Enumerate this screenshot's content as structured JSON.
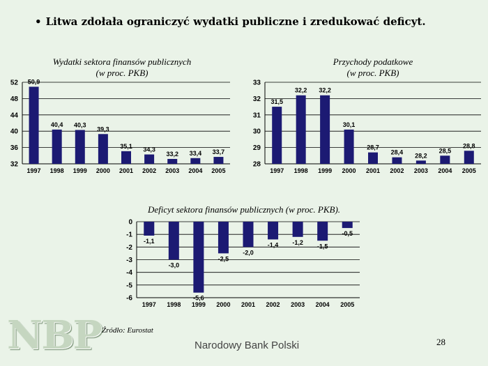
{
  "slide": {
    "bullet": "•",
    "headline": "Litwa zdołała ograniczyć wydatki publiczne i zredukować deficyt.",
    "source": "Źródło: Eurostat",
    "footer": "Narodowy Bank Polski",
    "page_number": "28",
    "logo_text": "NBP"
  },
  "colors": {
    "bar": "#1c1a73",
    "background": "#eaf3e8",
    "grid": "#000000"
  },
  "chart_data": [
    {
      "type": "bar",
      "title": "Wydatki sektora finansów publicznych",
      "subtitle": "(w proc. PKB)",
      "categories": [
        "1997",
        "1998",
        "1999",
        "2000",
        "2001",
        "2002",
        "2003",
        "2004",
        "2005"
      ],
      "values": [
        50.9,
        40.4,
        40.3,
        39.3,
        35.1,
        34.3,
        33.2,
        33.4,
        33.7
      ],
      "value_labels": [
        "50,9",
        "40,4",
        "40,3",
        "39,3",
        "35,1",
        "34,3",
        "33,2",
        "33,4",
        "33,7"
      ],
      "ylim": [
        32,
        52
      ],
      "yticks": [
        32,
        36,
        40,
        44,
        48,
        52
      ],
      "grid": true,
      "legend": "none"
    },
    {
      "type": "bar",
      "title": "Przychody podatkowe",
      "subtitle": "(w proc. PKB)",
      "categories": [
        "1997",
        "1998",
        "1999",
        "2000",
        "2001",
        "2002",
        "2003",
        "2004",
        "2005"
      ],
      "values": [
        31.5,
        32.2,
        32.2,
        30.1,
        28.7,
        28.4,
        28.2,
        28.5,
        28.8
      ],
      "value_labels": [
        "31,5",
        "32,2",
        "32,2",
        "30,1",
        "28,7",
        "28,4",
        "28,2",
        "28,5",
        "28,8"
      ],
      "ylim": [
        28,
        33
      ],
      "yticks": [
        28,
        29,
        30,
        31,
        32,
        33
      ],
      "grid": true,
      "legend": "none"
    },
    {
      "type": "bar",
      "title": "Deficyt sektora finansów publicznych (w proc. PKB).",
      "subtitle": "",
      "categories": [
        "1997",
        "1998",
        "1999",
        "2000",
        "2001",
        "2002",
        "2003",
        "2004",
        "2005"
      ],
      "values": [
        -1.1,
        -3.0,
        -5.6,
        -2.5,
        -2.0,
        -1.4,
        -1.2,
        -1.5,
        -0.5
      ],
      "value_labels": [
        "-1,1",
        "-3,0",
        "-5,6",
        "-2,5",
        "-2,0",
        "-1,4",
        "-1,2",
        "-1,5",
        "-0,5"
      ],
      "ylim": [
        -6,
        0
      ],
      "yticks": [
        -6,
        -5,
        -4,
        -3,
        -2,
        -1,
        0
      ],
      "grid": true,
      "legend": "none"
    }
  ]
}
